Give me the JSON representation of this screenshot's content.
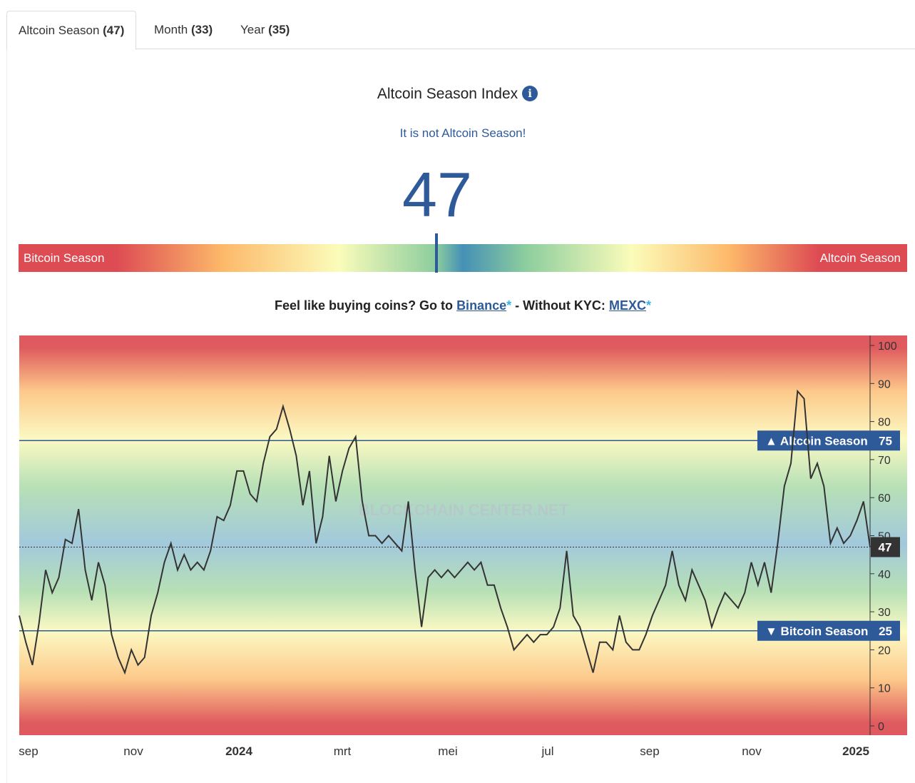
{
  "tabs": [
    {
      "label": "Altcoin Season",
      "count": "(47)",
      "active": true
    },
    {
      "label": "Month",
      "count": "(33)"
    },
    {
      "label": "Year",
      "count": "(35)"
    }
  ],
  "header": {
    "title": "Altcoin Season Index",
    "info_icon": "i",
    "status": "It is not Altcoin Season!",
    "value": "47"
  },
  "gauge": {
    "left_label": "Bitcoin Season",
    "right_label": "Altcoin Season",
    "value_percent": 47
  },
  "promo": {
    "text1": "Feel like buying coins? Go to",
    "link1": "Binance",
    "star": "*",
    "text2": "- Without KYC:",
    "link2": "MEXC"
  },
  "colors": {
    "accent": "#2e5a9a",
    "red": "#dd4b53",
    "orange": "#fdb96a",
    "yellow": "#fbfcba",
    "green": "#8ccd9e",
    "blue": "#4590b6"
  },
  "chart_data": {
    "type": "line",
    "watermark": "BLOCKCHAIN CENTER.NET",
    "x_ticks": [
      "sep",
      "nov",
      "2024",
      "mrt",
      "mei",
      "jul",
      "sep",
      "nov",
      "2025"
    ],
    "y_ticks": [
      0,
      10,
      20,
      30,
      40,
      50,
      60,
      70,
      80,
      90,
      100
    ],
    "ylim": [
      -2.5,
      102.7
    ],
    "current": 47,
    "thresholds": [
      {
        "label": "▲ Altcoin Season",
        "value": 75
      },
      {
        "label": "▼ Bitcoin Season",
        "value": 25
      }
    ],
    "values": [
      29,
      22,
      16,
      27,
      41,
      35,
      39,
      49,
      48,
      57,
      41,
      33,
      43,
      37,
      24,
      18,
      14,
      20,
      16,
      18,
      29,
      35,
      43,
      48,
      41,
      45,
      41,
      43,
      41,
      46,
      55,
      54,
      58,
      67,
      67,
      61,
      59,
      69,
      76,
      78,
      84,
      78,
      71,
      58,
      67,
      48,
      55,
      71,
      59,
      67,
      73,
      76,
      59,
      50,
      50,
      48,
      50,
      48,
      46,
      59,
      41,
      26,
      39,
      41,
      39,
      41,
      39,
      41,
      43,
      41,
      43,
      37,
      37,
      31,
      26,
      20,
      22,
      24,
      22,
      24,
      24,
      26,
      31,
      46,
      29,
      26,
      20,
      14,
      22,
      22,
      20,
      29,
      22,
      20,
      20,
      24,
      29,
      33,
      37,
      46,
      37,
      33,
      41,
      37,
      33,
      26,
      31,
      35,
      33,
      31,
      35,
      43,
      37,
      43,
      35,
      48,
      63,
      69,
      88,
      86,
      65,
      69,
      63,
      48,
      52,
      48,
      50,
      54,
      59,
      47
    ]
  }
}
